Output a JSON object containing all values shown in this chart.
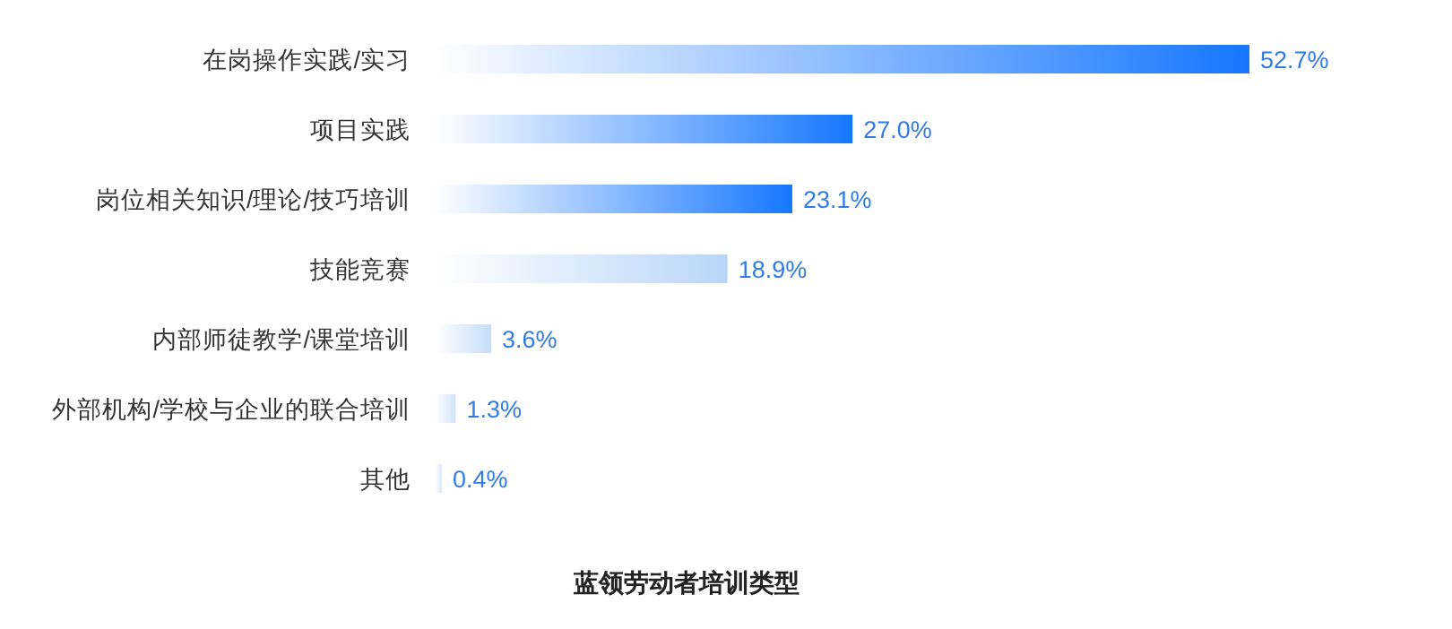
{
  "chart_data": {
    "type": "bar",
    "orientation": "horizontal",
    "title": "蓝领劳动者培训类型",
    "categories": [
      "在岗操作实践/实习",
      "项目实践",
      "岗位相关知识/理论/技巧培训",
      "技能竞赛",
      "内部师徒教学/课堂培训",
      "外部机构/学校与企业的联合培训",
      "其他"
    ],
    "values": [
      52.7,
      27.0,
      23.1,
      18.9,
      3.6,
      1.3,
      0.4
    ],
    "value_labels": [
      "52.7%",
      "27.0%",
      "23.1%",
      "18.9%",
      "3.6%",
      "1.3%",
      "0.4%"
    ],
    "colors": [
      "#1677ff",
      "#1677ff",
      "#1677ff",
      "#b8d5f8",
      "#c5ddf9",
      "#cfe3fa",
      "#d6e6fa"
    ]
  }
}
